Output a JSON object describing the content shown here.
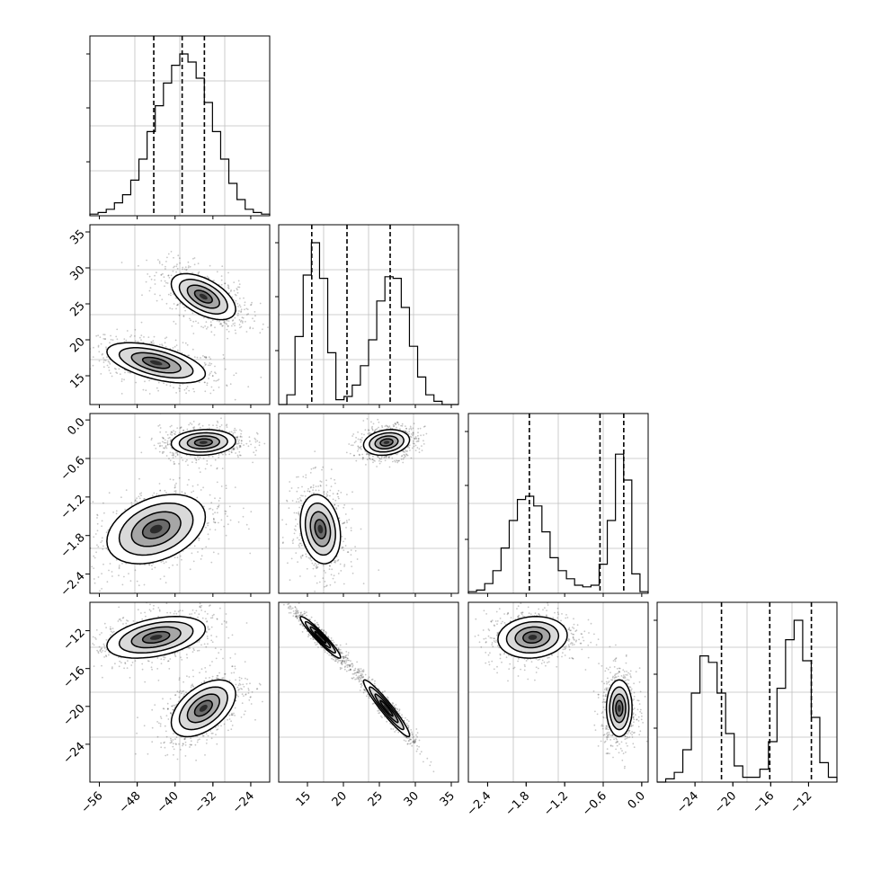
{
  "chart_data": {
    "type": "corner",
    "title": "",
    "params": [
      {
        "range": [
          -58,
          -20
        ],
        "ticks": [
          -56,
          -48,
          -40,
          -32,
          -24
        ],
        "tick_labels": [
          "−56",
          "−48",
          "−40",
          "−32",
          "−24"
        ],
        "quantiles": [
          -44.5,
          -38.5,
          -33.8
        ]
      },
      {
        "range": [
          11,
          36
        ],
        "ticks": [
          15,
          20,
          25,
          30,
          35
        ],
        "tick_labels": [
          "15",
          "20",
          "25",
          "30",
          "35"
        ],
        "quantiles": [
          15.6,
          20.5,
          26.5
        ]
      },
      {
        "range": [
          -2.7,
          0.1
        ],
        "ticks": [
          -2.4,
          -1.8,
          -1.2,
          -0.6,
          0.0
        ],
        "tick_labels": [
          "−2.4",
          "−1.8",
          "−1.2",
          "−0.6",
          "0.0"
        ],
        "quantiles": [
          -1.75,
          -0.65,
          -0.28
        ]
      },
      {
        "range": [
          -28,
          -9
        ],
        "ticks": [
          -24,
          -20,
          -16,
          -12
        ],
        "tick_labels": [
          "−24",
          "−20",
          "−16",
          "−12"
        ],
        "quantiles": [
          -21.2,
          -16.1,
          -11.7
        ]
      }
    ],
    "histograms": [
      [
        0.01,
        0.02,
        0.04,
        0.08,
        0.13,
        0.22,
        0.35,
        0.52,
        0.68,
        0.82,
        0.93,
        1.0,
        0.95,
        0.85,
        0.7,
        0.52,
        0.35,
        0.2,
        0.1,
        0.04,
        0.02,
        0.01
      ],
      [
        0.0,
        0.06,
        0.42,
        0.8,
        1.0,
        0.78,
        0.32,
        0.03,
        0.05,
        0.12,
        0.24,
        0.4,
        0.64,
        0.79,
        0.78,
        0.6,
        0.36,
        0.17,
        0.06,
        0.02,
        0.0,
        0.0
      ],
      [
        0.01,
        0.02,
        0.06,
        0.14,
        0.28,
        0.45,
        0.58,
        0.6,
        0.54,
        0.38,
        0.22,
        0.14,
        0.09,
        0.05,
        0.04,
        0.05,
        0.18,
        0.45,
        0.86,
        0.7,
        0.12,
        0.01
      ],
      [
        0.0,
        0.02,
        0.06,
        0.2,
        0.55,
        0.78,
        0.74,
        0.55,
        0.3,
        0.1,
        0.03,
        0.03,
        0.08,
        0.25,
        0.58,
        0.88,
        1.0,
        0.75,
        0.4,
        0.12,
        0.03
      ]
    ],
    "modes": [
      {
        "mean": [
          -44,
          16.8,
          -1.7,
          -12.7
        ],
        "sd": [
          5.2,
          1.4,
          0.27,
          1.1
        ],
        "weight": 0.5
      },
      {
        "mean": [
          -34,
          26.0,
          -0.35,
          -20.2
        ],
        "sd": [
          3.4,
          1.6,
          0.1,
          1.5
        ],
        "weight": 0.5
      }
    ],
    "correlations": {
      "0-1": [
        -0.55,
        -0.55
      ],
      "0-2": [
        0.35,
        0.1
      ],
      "0-3": [
        0.4,
        0.5
      ],
      "1-2": [
        -0.2,
        0.2
      ],
      "1-3": [
        -0.95,
        -0.95
      ],
      "2-3": [
        0.1,
        0.0
      ]
    },
    "histogram_color": "#000000",
    "point_color": "#000000",
    "quantile_style": "dashed",
    "grid": true
  }
}
